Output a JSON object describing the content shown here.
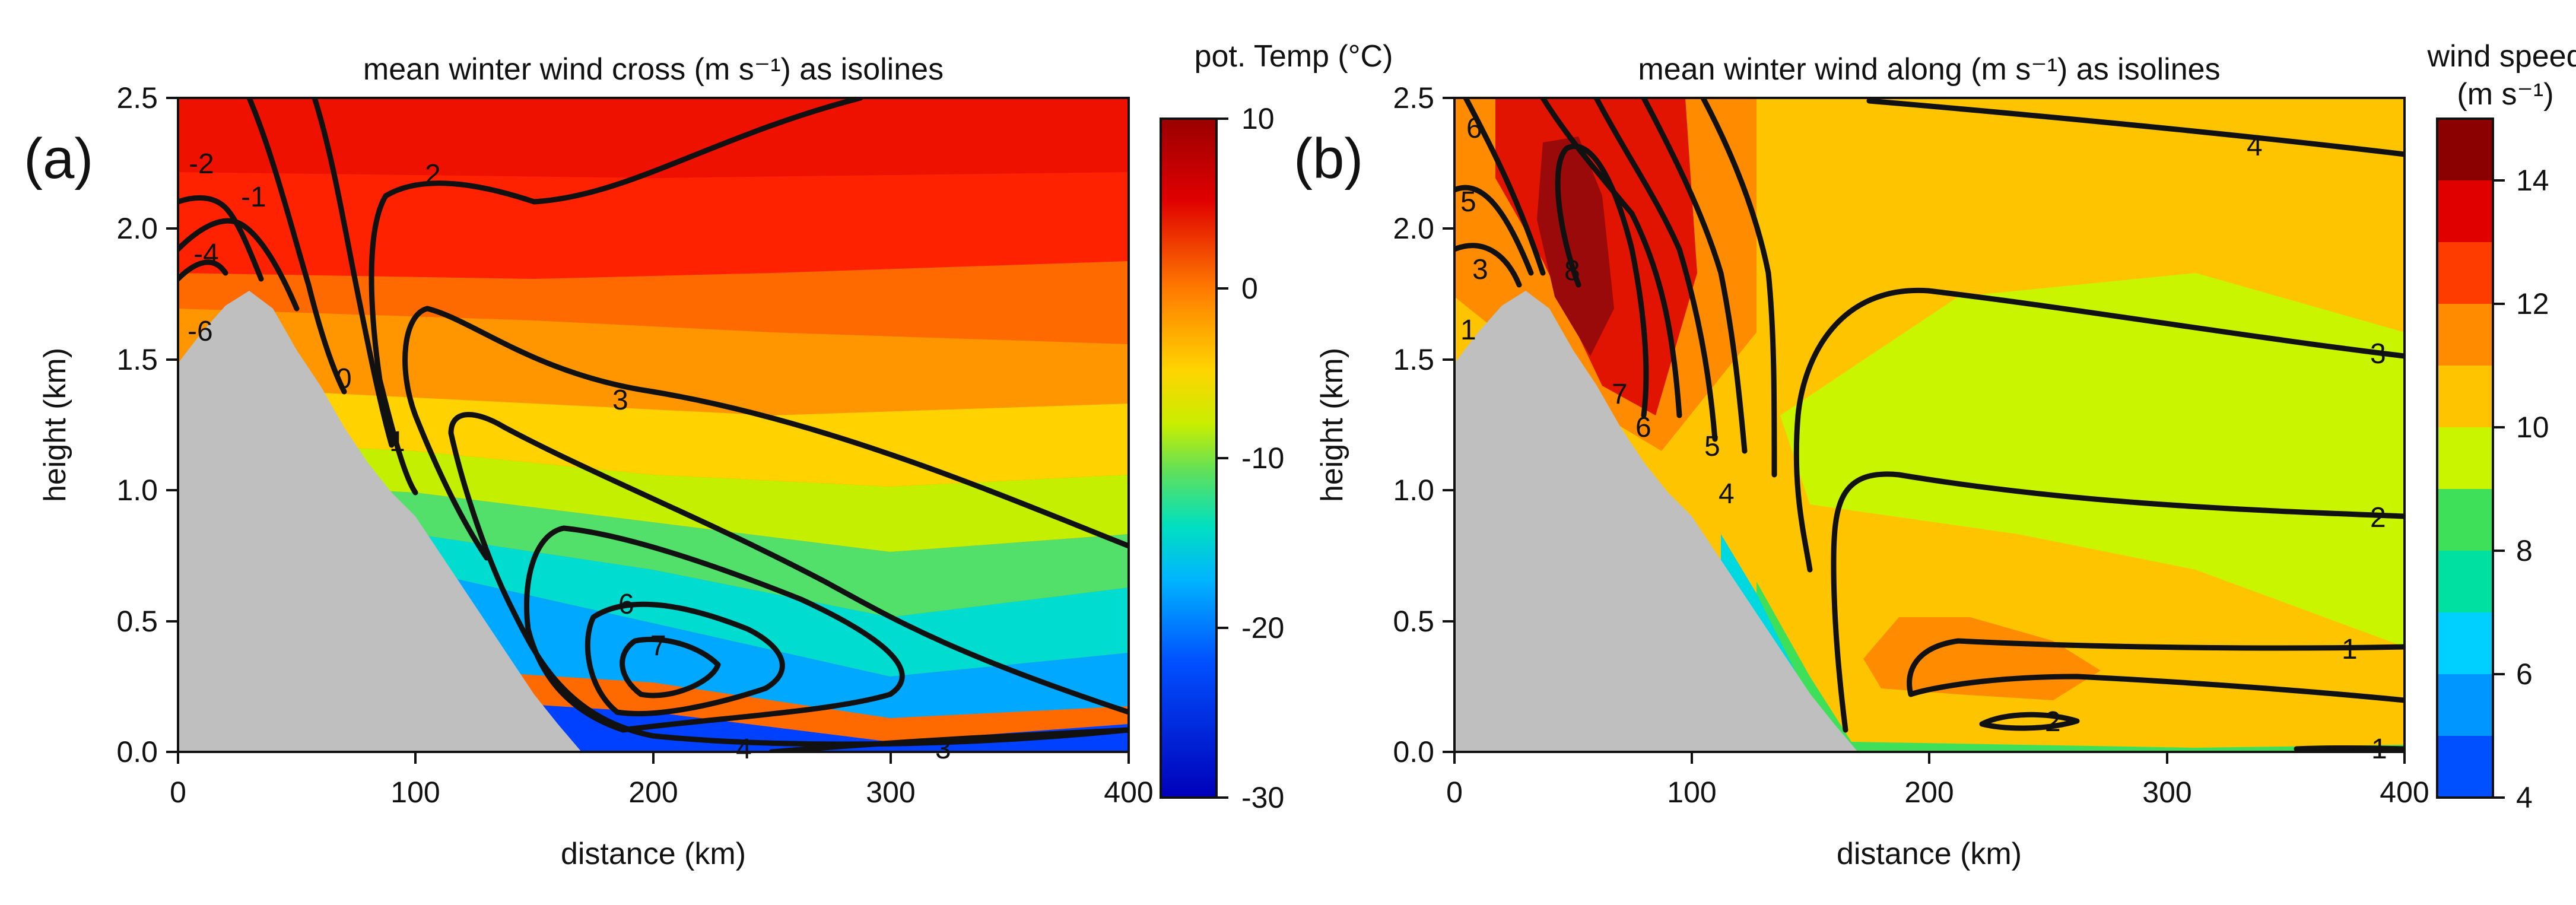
{
  "chart_data": [
    {
      "panel_label": "(a)",
      "type": "heatmap",
      "title": "mean winter wind cross (m s⁻¹) as isolines",
      "xlabel": "distance (km)",
      "ylabel": "height (km)",
      "xlim": [
        0,
        400
      ],
      "ylim": [
        0,
        2.5
      ],
      "x_ticks": [
        "0",
        "100",
        "200",
        "300",
        "400"
      ],
      "y_ticks": [
        "0.0",
        "0.5",
        "1.0",
        "1.5",
        "2.0",
        "2.5"
      ],
      "colorbar": {
        "title": "pot. Temp (°C)",
        "range": [
          -30,
          10
        ],
        "ticks": [
          "10",
          "0",
          "-10",
          "-20",
          "-30"
        ]
      },
      "terrain_profile": [
        [
          0,
          1.48
        ],
        [
          15,
          1.62
        ],
        [
          30,
          1.74
        ],
        [
          45,
          1.72
        ],
        [
          60,
          1.55
        ],
        [
          80,
          1.3
        ],
        [
          100,
          1.12
        ],
        [
          120,
          0.88
        ],
        [
          140,
          0.62
        ],
        [
          160,
          0.35
        ],
        [
          175,
          0.12
        ],
        [
          190,
          0.0
        ]
      ],
      "isoline_labels": [
        "-2",
        "-1",
        "-4",
        "-6",
        "0",
        "1",
        "2",
        "3",
        "6",
        "7",
        "4",
        "3"
      ],
      "max_isoline_value": 7
    },
    {
      "panel_label": "(b)",
      "type": "heatmap",
      "title": "mean winter wind along (m s⁻¹) as isolines",
      "xlabel": "distance (km)",
      "ylabel": "height (km)",
      "xlim": [
        0,
        400
      ],
      "ylim": [
        0,
        2.5
      ],
      "x_ticks": [
        "0",
        "100",
        "200",
        "300",
        "400"
      ],
      "y_ticks": [
        "0.0",
        "0.5",
        "1.0",
        "1.5",
        "2.0",
        "2.5"
      ],
      "colorbar": {
        "title": "wind speed",
        "title2": "(m s⁻¹)",
        "range": [
          4,
          15
        ],
        "ticks": [
          "14",
          "12",
          "10",
          "8",
          "6",
          "4"
        ]
      },
      "terrain_profile": [
        [
          0,
          1.48
        ],
        [
          15,
          1.62
        ],
        [
          30,
          1.74
        ],
        [
          45,
          1.72
        ],
        [
          60,
          1.55
        ],
        [
          80,
          1.3
        ],
        [
          100,
          1.12
        ],
        [
          120,
          0.88
        ],
        [
          140,
          0.62
        ],
        [
          160,
          0.35
        ],
        [
          175,
          0.12
        ],
        [
          190,
          0.0
        ]
      ],
      "isoline_labels": [
        "6",
        "5",
        "3",
        "1",
        "8",
        "7",
        "6",
        "5",
        "4",
        "4",
        "3",
        "2",
        "1",
        "2",
        "1"
      ],
      "max_isoline_value": 8
    }
  ]
}
